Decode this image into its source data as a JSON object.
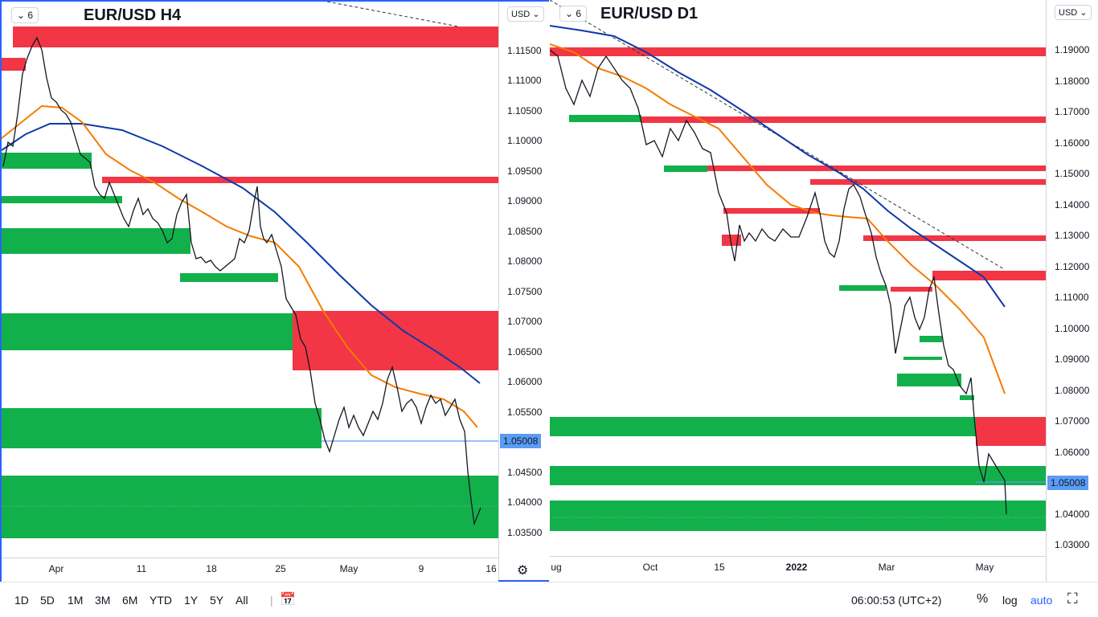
{
  "left_chart": {
    "interval": "6",
    "title": "EUR/USD H4",
    "currency": "USD",
    "price_tag": "1.05008",
    "y_ticks": [
      "1.11500",
      "1.11000",
      "1.10500",
      "1.10000",
      "1.09500",
      "1.09000",
      "1.08500",
      "1.08000",
      "1.07500",
      "1.07000",
      "1.06500",
      "1.06000",
      "1.05500",
      "1.05000",
      "1.04500",
      "1.04000",
      "1.03500"
    ],
    "x_ticks": [
      "Apr",
      "11",
      "18",
      "25",
      "May",
      "9",
      "16"
    ]
  },
  "right_chart": {
    "interval": "6",
    "title": "EUR/USD D1",
    "currency": "USD",
    "price_tag": "1.05008",
    "y_ticks": [
      "1.19000",
      "1.18000",
      "1.17000",
      "1.16000",
      "1.15000",
      "1.14000",
      "1.13000",
      "1.12000",
      "1.11000",
      "1.10000",
      "1.09000",
      "1.08000",
      "1.07000",
      "1.06000",
      "1.05000",
      "1.04000",
      "1.03000"
    ],
    "x_ticks": [
      "ug",
      "Oct",
      "15",
      "2022",
      "Mar",
      "May"
    ]
  },
  "bottom_bar": {
    "ranges": [
      "1D",
      "5D",
      "1M",
      "3M",
      "6M",
      "YTD",
      "1Y",
      "5Y",
      "All"
    ],
    "time": "06:00:53 (UTC+2)",
    "percent": "%",
    "log": "log",
    "auto": "auto"
  },
  "colors": {
    "support": "#12b04b",
    "resistance": "#f23645",
    "ma_fast": "#f57c00",
    "ma_slow": "#0d3aa9",
    "price_line": "#5b9cf6",
    "accent": "#2962ff"
  },
  "icons": {
    "interval_chevron": "chevron-down-icon",
    "settings": "gear-icon",
    "date_range": "calendar-icon",
    "fullscreen": "fullscreen-icon"
  }
}
